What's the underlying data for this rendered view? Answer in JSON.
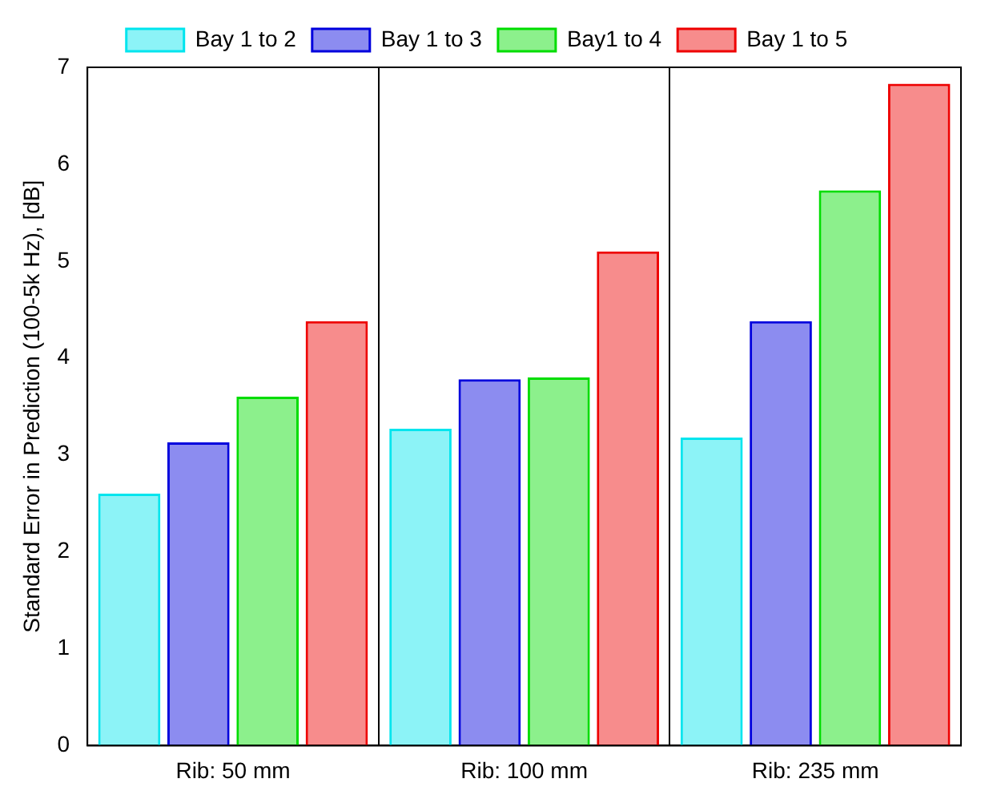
{
  "chart_data": {
    "type": "bar",
    "ylabel": "Standard Error in Prediction (100-5k Hz), [dB]",
    "categories": [
      "Rib: 50 mm",
      "Rib: 100 mm",
      "Rib: 235 mm"
    ],
    "series": [
      {
        "name": "Bay 1 to 2",
        "color": "#00e5ee",
        "values": [
          2.6,
          3.27,
          3.18
        ]
      },
      {
        "name": "Bay 1 to 3",
        "color": "#0000dd",
        "values": [
          3.13,
          3.78,
          4.38
        ]
      },
      {
        "name": "Bay1 to 4",
        "color": "#00dd00",
        "values": [
          3.6,
          3.8,
          5.73
        ]
      },
      {
        "name": "Bay 1 to 5",
        "color": "#ee0000",
        "values": [
          4.38,
          5.1,
          6.83
        ]
      }
    ],
    "ylim": [
      0,
      7
    ],
    "yticks": [
      0,
      1,
      2,
      3,
      4,
      5,
      6,
      7
    ],
    "grid": "x",
    "legend": "top"
  }
}
